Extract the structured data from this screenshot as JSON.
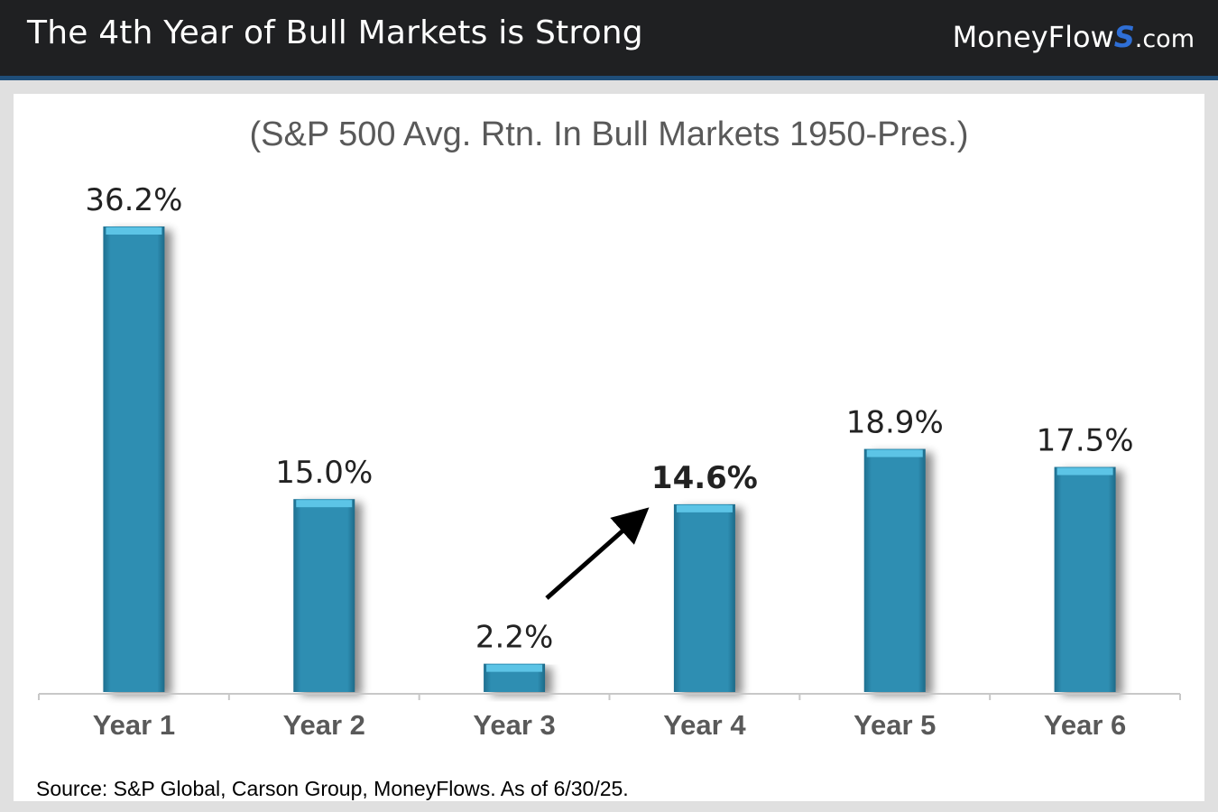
{
  "header": {
    "title": "The 4th Year of Bull Markets is Strong",
    "brand_name": "MoneyFlow",
    "brand_s": "S",
    "brand_tld": ".com"
  },
  "chart_data": {
    "type": "bar",
    "title": "(S&P 500 Avg. Rtn. In Bull Markets 1950-Pres.)",
    "categories": [
      "Year 1",
      "Year 2",
      "Year 3",
      "Year 4",
      "Year 5",
      "Year 6"
    ],
    "values": [
      36.2,
      15.0,
      2.2,
      14.6,
      18.9,
      17.5
    ],
    "data_labels": [
      "36.2%",
      "15.0%",
      "2.2%",
      "14.6%",
      "18.9%",
      "17.5%"
    ],
    "highlight_index": 3,
    "ylim": [
      0,
      36.2
    ],
    "grid": false,
    "legend": "none",
    "annotation": "arrow from Year 3 to Year 4",
    "bar_color": "#2e8eb2",
    "label_color": "#222222",
    "category_color": "#595959"
  },
  "source": "Source: S&P Global, Carson Group, MoneyFlows. As of 6/30/25."
}
